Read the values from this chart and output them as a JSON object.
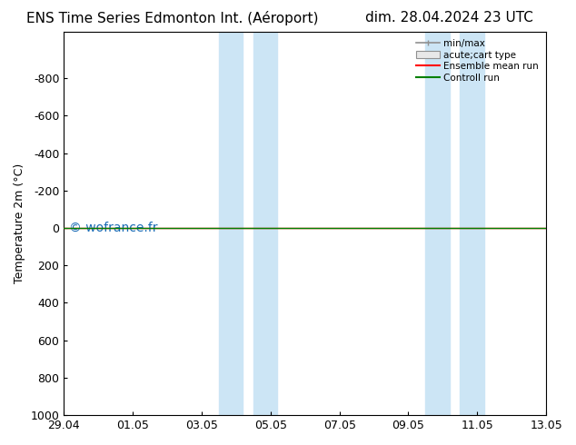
{
  "title_left": "ENS Time Series Edmonton Int. (Aéroport)",
  "title_right": "dim. 28.04.2024 23 UTC",
  "ylabel": "Temperature 2m (°C)",
  "ylim_bottom": 1000,
  "ylim_top": -1050,
  "yticks": [
    -800,
    -600,
    -400,
    -200,
    0,
    200,
    400,
    600,
    800,
    1000
  ],
  "x_start": 0,
  "x_end": 14,
  "xtick_labels": [
    "29.04",
    "01.05",
    "03.05",
    "05.05",
    "07.05",
    "09.05",
    "11.05",
    "13.05"
  ],
  "xtick_positions": [
    0,
    2,
    4,
    6,
    8,
    10,
    12,
    14
  ],
  "shade_regions": [
    [
      4.5,
      5.2
    ],
    [
      5.5,
      6.2
    ],
    [
      10.5,
      11.2
    ],
    [
      11.5,
      12.2
    ]
  ],
  "shade_color": "#cce5f5",
  "line_y_green": 0,
  "line_y_red": 0,
  "line_color_green": "#008000",
  "line_color_red": "#ff0000",
  "watermark": "© wofrance.fr",
  "watermark_color": "#1a6bb5",
  "legend_items": [
    "min/max",
    "acute;cart type",
    "Ensemble mean run",
    "Controll run"
  ],
  "legend_colors": [
    "#909090",
    "#c8c8c8",
    "#ff0000",
    "#008000"
  ],
  "bg_color": "#ffffff",
  "plot_bg_color": "#ffffff",
  "title_fontsize": 11,
  "axis_label_fontsize": 9,
  "watermark_fontsize": 10
}
